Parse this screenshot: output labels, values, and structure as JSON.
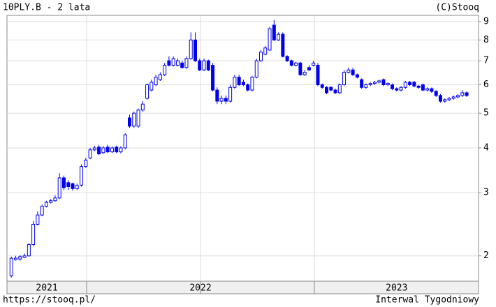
{
  "chart_data": {
    "type": "candlestick",
    "title": "10PLY.B - 2 lata",
    "credit": "(C)Stooq",
    "source": "https://stooq.pl/",
    "interval": "Interwal Tygodniowy",
    "color": "#0000ee",
    "log_scale": true,
    "grid": true,
    "ylim": [
      1.7,
      9.37
    ],
    "yticks": [
      2,
      3,
      4,
      5,
      6,
      7,
      8,
      9
    ],
    "xlim": [
      0,
      107.7
    ],
    "xticks": [
      {
        "value": 9.1,
        "label": "2021"
      },
      {
        "value": 44.2,
        "label": "2022"
      },
      {
        "value": 89,
        "label": "2023"
      }
    ],
    "xgrid": [
      18.2,
      44.2,
      70.2
    ],
    "x": [
      1,
      2,
      3,
      4,
      5,
      6,
      7,
      8,
      9,
      10,
      11,
      12,
      13,
      14,
      15,
      16,
      17,
      18,
      19,
      20,
      21,
      22,
      23,
      24,
      25,
      26,
      27,
      28,
      29,
      30,
      31,
      32,
      33,
      34,
      35,
      36,
      37,
      38,
      39,
      40,
      41,
      42,
      43,
      44,
      45,
      46,
      47,
      48,
      49,
      50,
      51,
      52,
      53,
      54,
      55,
      56,
      57,
      58,
      59,
      60,
      61,
      62,
      63,
      64,
      65,
      66,
      67,
      68,
      69,
      70,
      71,
      72,
      73,
      74,
      75,
      76,
      77,
      78,
      79,
      80,
      81,
      82,
      83,
      84,
      85,
      86,
      87,
      88,
      89,
      90,
      91,
      92,
      93,
      94,
      95,
      96,
      97,
      98,
      99,
      100,
      101,
      102,
      103,
      104,
      105
    ],
    "open": [
      1.76,
      1.95,
      1.96,
      1.98,
      2.0,
      2.15,
      2.45,
      2.6,
      2.75,
      2.82,
      2.85,
      2.9,
      3.3,
      3.2,
      3.18,
      3.08,
      3.15,
      3.55,
      3.75,
      3.95,
      4.02,
      3.88,
      4.02,
      3.9,
      4.02,
      3.9,
      4.0,
      4.85,
      4.6,
      4.6,
      5.1,
      5.5,
      5.8,
      6.0,
      6.2,
      6.4,
      7.0,
      6.8,
      6.8,
      6.9,
      6.7,
      7.1,
      8.0,
      7.0,
      6.6,
      7.0,
      6.8,
      5.8,
      5.4,
      5.5,
      5.4,
      5.9,
      6.3,
      6.1,
      6.0,
      5.8,
      6.3,
      7.0,
      7.3,
      7.5,
      8.8,
      8.0,
      8.3,
      7.2,
      7.0,
      6.8,
      6.9,
      6.4,
      6.7,
      6.8,
      6.8,
      6.0,
      5.9,
      5.9,
      5.8,
      5.7,
      6.0,
      6.5,
      6.6,
      6.4,
      6.2,
      5.9,
      6.0,
      6.05,
      6.1,
      6.2,
      6.0,
      6.0,
      5.85,
      5.8,
      5.9,
      6.1,
      6.1,
      5.95,
      6.0,
      5.8,
      5.85,
      5.75,
      5.6,
      5.4,
      5.45,
      5.5,
      5.55,
      5.6,
      5.7
    ],
    "high": [
      1.99,
      2.0,
      2.01,
      2.03,
      2.17,
      2.5,
      2.66,
      2.78,
      2.85,
      2.88,
      2.95,
      3.4,
      3.35,
      3.25,
      3.2,
      3.18,
      3.6,
      3.75,
      4.0,
      4.05,
      4.08,
      4.05,
      4.08,
      4.04,
      4.06,
      4.04,
      4.4,
      4.95,
      5.05,
      5.15,
      5.4,
      6.05,
      6.2,
      6.4,
      6.5,
      6.9,
      7.2,
      7.2,
      7.1,
      7.0,
      7.2,
      8.4,
      8.4,
      7.1,
      7.1,
      7.05,
      6.9,
      5.9,
      5.6,
      5.6,
      6.0,
      6.4,
      6.4,
      6.2,
      6.05,
      6.35,
      7.1,
      7.5,
      7.7,
      8.7,
      9.1,
      8.4,
      8.4,
      7.25,
      7.05,
      6.95,
      6.95,
      6.6,
      6.8,
      7.0,
      6.9,
      6.05,
      5.95,
      5.95,
      5.85,
      6.05,
      6.6,
      6.7,
      6.7,
      6.45,
      6.25,
      6.05,
      6.1,
      6.15,
      6.2,
      6.25,
      6.1,
      6.05,
      5.9,
      5.95,
      6.15,
      6.15,
      6.15,
      6.0,
      6.05,
      5.9,
      5.9,
      5.8,
      5.65,
      5.5,
      5.55,
      5.6,
      5.65,
      5.8,
      5.75
    ],
    "low": [
      1.74,
      1.94,
      1.94,
      1.97,
      1.99,
      2.13,
      2.43,
      2.58,
      2.73,
      2.8,
      2.83,
      2.88,
      3.05,
      3.05,
      3.04,
      3.05,
      3.12,
      3.52,
      3.72,
      3.92,
      3.82,
      3.85,
      3.87,
      3.87,
      3.87,
      3.86,
      3.97,
      4.55,
      4.55,
      4.55,
      5.05,
      5.45,
      5.75,
      5.95,
      6.15,
      6.35,
      6.75,
      6.75,
      6.75,
      6.65,
      6.65,
      7.05,
      6.95,
      6.55,
      6.55,
      6.55,
      5.75,
      5.3,
      5.3,
      5.3,
      5.35,
      5.85,
      5.95,
      5.95,
      5.75,
      5.75,
      6.25,
      6.95,
      7.25,
      7.45,
      7.95,
      7.95,
      7.15,
      6.95,
      6.75,
      6.75,
      6.35,
      6.35,
      6.55,
      6.75,
      5.95,
      5.85,
      5.65,
      5.75,
      5.65,
      5.65,
      5.95,
      6.45,
      6.35,
      6.25,
      5.85,
      5.85,
      5.95,
      6.0,
      6.05,
      5.95,
      5.95,
      5.8,
      5.75,
      5.75,
      5.85,
      5.95,
      5.9,
      5.85,
      5.75,
      5.75,
      5.7,
      5.55,
      5.35,
      5.35,
      5.4,
      5.45,
      5.5,
      5.55,
      5.55
    ],
    "close": [
      1.97,
      1.97,
      1.99,
      2.0,
      2.15,
      2.45,
      2.6,
      2.75,
      2.82,
      2.85,
      2.9,
      3.3,
      3.1,
      3.12,
      3.08,
      3.14,
      3.55,
      3.7,
      3.95,
      4.0,
      3.85,
      4.0,
      3.9,
      4.0,
      3.9,
      4.0,
      4.35,
      4.6,
      5.0,
      5.1,
      5.3,
      6.0,
      6.1,
      6.3,
      6.4,
      6.8,
      6.8,
      7.1,
      7.0,
      6.7,
      7.1,
      8.0,
      7.0,
      6.6,
      7.0,
      6.6,
      5.8,
      5.4,
      5.5,
      5.4,
      5.9,
      6.3,
      6.0,
      6.0,
      5.8,
      6.3,
      7.0,
      7.4,
      7.6,
      8.6,
      8.0,
      8.3,
      7.2,
      7.0,
      6.8,
      6.9,
      6.4,
      6.5,
      6.6,
      6.9,
      6.0,
      5.9,
      5.7,
      5.8,
      5.7,
      6.0,
      6.5,
      6.6,
      6.4,
      6.3,
      5.9,
      6.0,
      6.05,
      6.1,
      6.15,
      6.0,
      6.05,
      5.85,
      5.8,
      5.9,
      6.1,
      6.0,
      5.95,
      5.9,
      5.8,
      5.85,
      5.75,
      5.6,
      5.4,
      5.45,
      5.5,
      5.55,
      5.6,
      5.7,
      5.6
    ]
  }
}
